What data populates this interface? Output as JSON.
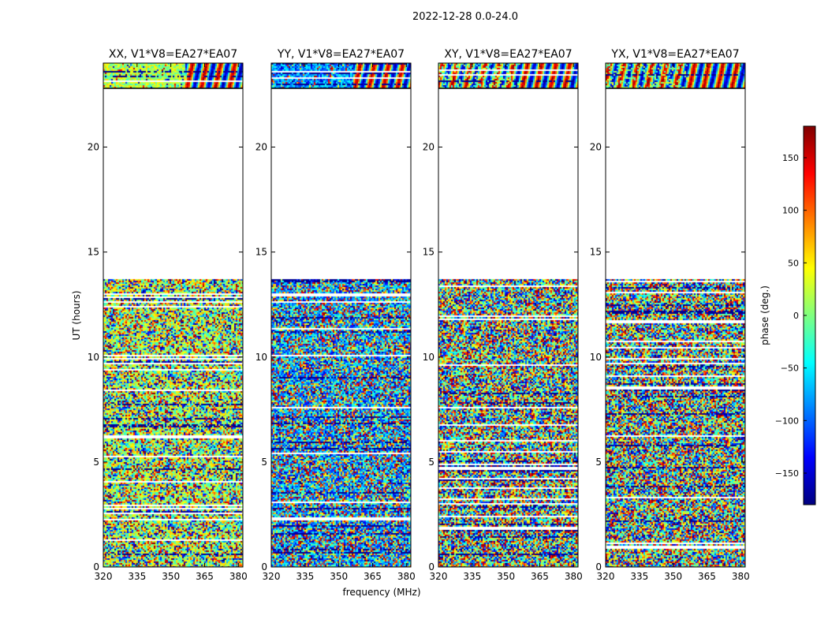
{
  "figure": {
    "suptitle": "2022-12-28 0.0-24.0"
  },
  "chart_data": {
    "type": "heatmap",
    "colormap": "jet",
    "panels": [
      {
        "title": "XX, V1*V8=EA27*EA07",
        "polarization": "XX"
      },
      {
        "title": "YY, V1*V8=EA27*EA07",
        "polarization": "YY"
      },
      {
        "title": "XY, V1*V8=EA27*EA07",
        "polarization": "XY"
      },
      {
        "title": "YX, V1*V8=EA27*EA07",
        "polarization": "YX"
      }
    ],
    "xlabel": "frequency (MHz)",
    "ylabel": "UT (hours)",
    "xlim": [
      320,
      382
    ],
    "ylim": [
      0,
      24
    ],
    "xticks": [
      "320",
      "335",
      "350",
      "365",
      "380"
    ],
    "xtick_values": [
      320,
      335,
      350,
      365,
      380
    ],
    "yticks": [
      "0",
      "5",
      "10",
      "15",
      "20"
    ],
    "ytick_values": [
      0,
      5,
      10,
      15,
      20
    ],
    "data_gap_hours": [
      13.75,
      22.8
    ],
    "colorbar": {
      "label": "phase (deg.)",
      "range": [
        -180,
        180
      ],
      "ticks": [
        "150",
        "100",
        "50",
        "0",
        "−50",
        "−100",
        "−150"
      ],
      "tick_values": [
        150,
        100,
        50,
        0,
        -50,
        -100,
        -150
      ],
      "colors": [
        "#00007f",
        "#0000ff",
        "#007fff",
        "#00ffff",
        "#7fff7f",
        "#ffff00",
        "#ff7f00",
        "#ff0000",
        "#7f0000"
      ]
    }
  }
}
